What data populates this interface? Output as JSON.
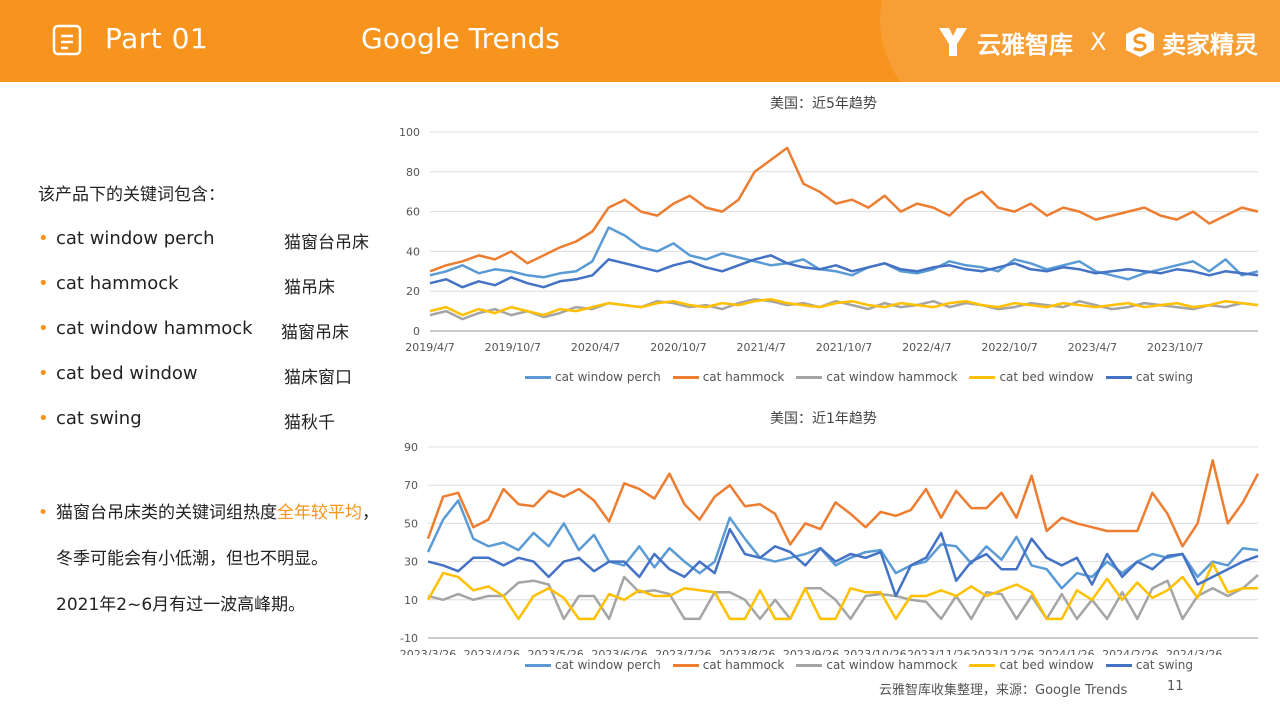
{
  "header": {
    "part": "Part 01",
    "title": "Google Trends",
    "brand_a": "云雅智库",
    "brand_sep": "X",
    "brand_b": "卖家精灵",
    "bg_color": "#f7941d"
  },
  "left": {
    "intro": "该产品下的关键词包含：",
    "bullet": "•",
    "keywords": [
      {
        "en": "cat window perch",
        "cn": "猫窗台吊床"
      },
      {
        "en": "cat hammock",
        "cn": "猫吊床"
      },
      {
        "en": "cat window hammock",
        "cn": "猫窗吊床"
      },
      {
        "en": "cat bed window",
        "cn": "猫床窗口"
      },
      {
        "en": "cat swing",
        "cn": "猫秋千"
      }
    ],
    "note_part1": "猫窗台吊床类的关键词组热度",
    "note_highlight": "全年较平均",
    "note_part2": "，冬季可能会有小低潮，但也不明显。",
    "note_part3": "2021年2~6月有过一波高峰期。"
  },
  "footer": {
    "source": "云雅智库收集整理，来源：Google Trends",
    "page": "11"
  },
  "chart_data": [
    {
      "type": "line",
      "title": "美国：近5年趋势",
      "ylim": [
        0,
        100
      ],
      "yticks": [
        0,
        20,
        40,
        60,
        80,
        100
      ],
      "xticks": [
        "2019/4/7",
        "2019/10/7",
        "2020/4/7",
        "2020/10/7",
        "2021/4/7",
        "2021/10/7",
        "2022/4/7",
        "2022/10/7",
        "2023/4/7",
        "2023/10/7"
      ],
      "legend_position": "bottom",
      "series": [
        {
          "name": "cat window perch",
          "color": "#5b9bd5",
          "values": [
            28,
            30,
            33,
            29,
            31,
            30,
            28,
            27,
            29,
            30,
            35,
            52,
            48,
            42,
            40,
            44,
            38,
            36,
            39,
            37,
            35,
            33,
            34,
            36,
            31,
            30,
            28,
            32,
            34,
            30,
            29,
            31,
            35,
            33,
            32,
            30,
            36,
            34,
            31,
            33,
            35,
            30,
            28,
            26,
            29,
            31,
            33,
            35,
            30,
            36,
            28,
            30
          ]
        },
        {
          "name": "cat hammock",
          "color": "#ed7d31",
          "values": [
            30,
            33,
            35,
            38,
            36,
            40,
            34,
            38,
            42,
            45,
            50,
            62,
            66,
            60,
            58,
            64,
            68,
            62,
            60,
            66,
            80,
            86,
            92,
            74,
            70,
            64,
            66,
            62,
            68,
            60,
            64,
            62,
            58,
            66,
            70,
            62,
            60,
            64,
            58,
            62,
            60,
            56,
            58,
            60,
            62,
            58,
            56,
            60,
            54,
            58,
            62,
            60
          ]
        },
        {
          "name": "cat window hammock",
          "color": "#a5a5a5",
          "values": [
            8,
            10,
            6,
            9,
            11,
            8,
            10,
            7,
            9,
            12,
            11,
            14,
            13,
            12,
            15,
            14,
            12,
            13,
            11,
            14,
            16,
            15,
            13,
            14,
            12,
            15,
            13,
            11,
            14,
            12,
            13,
            15,
            12,
            14,
            13,
            11,
            12,
            14,
            13,
            12,
            15,
            13,
            11,
            12,
            14,
            13,
            12,
            11,
            13,
            12,
            14,
            13
          ]
        },
        {
          "name": "cat bed window",
          "color": "#ffc000",
          "values": [
            10,
            12,
            8,
            11,
            9,
            12,
            10,
            8,
            11,
            10,
            12,
            14,
            13,
            12,
            14,
            15,
            13,
            12,
            14,
            13,
            15,
            16,
            14,
            13,
            12,
            14,
            15,
            13,
            12,
            14,
            13,
            12,
            14,
            15,
            13,
            12,
            14,
            13,
            12,
            14,
            13,
            12,
            13,
            14,
            12,
            13,
            14,
            12,
            13,
            15,
            14,
            13
          ]
        },
        {
          "name": "cat swing",
          "color": "#4472c4",
          "values": [
            24,
            26,
            22,
            25,
            23,
            27,
            24,
            22,
            25,
            26,
            28,
            36,
            34,
            32,
            30,
            33,
            35,
            32,
            30,
            33,
            36,
            38,
            34,
            32,
            31,
            33,
            30,
            32,
            34,
            31,
            30,
            32,
            33,
            31,
            30,
            32,
            34,
            31,
            30,
            32,
            31,
            29,
            30,
            31,
            30,
            29,
            31,
            30,
            28,
            30,
            29,
            28
          ]
        }
      ]
    },
    {
      "type": "line",
      "title": "美国：近1年趋势",
      "ylim": [
        -10,
        90
      ],
      "yticks": [
        -10,
        10,
        30,
        50,
        70,
        90
      ],
      "xticks": [
        "2023/3/26",
        "2023/4/26",
        "2023/5/26",
        "2023/6/26",
        "2023/7/26",
        "2023/8/26",
        "2023/9/26",
        "2023/10/26",
        "2023/11/26",
        "2023/12/26",
        "2024/1/26",
        "2024/2/26",
        "2024/3/26"
      ],
      "legend_position": "bottom",
      "series": [
        {
          "name": "cat window perch",
          "color": "#5b9bd5",
          "values": [
            35,
            52,
            62,
            42,
            38,
            40,
            36,
            45,
            38,
            50,
            36,
            44,
            30,
            28,
            38,
            27,
            37,
            30,
            24,
            30,
            53,
            42,
            32,
            30,
            32,
            34,
            37,
            28,
            32,
            35,
            36,
            24,
            28,
            30,
            39,
            38,
            29,
            38,
            31,
            43,
            28,
            26,
            16,
            24,
            22,
            30,
            24,
            30,
            34,
            32,
            34,
            22,
            30,
            28,
            37,
            36
          ]
        },
        {
          "name": "cat hammock",
          "color": "#ed7d31",
          "values": [
            42,
            64,
            66,
            48,
            52,
            68,
            60,
            59,
            67,
            64,
            68,
            62,
            51,
            71,
            68,
            63,
            76,
            60,
            52,
            64,
            70,
            59,
            60,
            55,
            39,
            50,
            47,
            61,
            55,
            48,
            56,
            54,
            57,
            68,
            53,
            67,
            58,
            58,
            66,
            53,
            75,
            46,
            53,
            50,
            48,
            46,
            46,
            46,
            66,
            55,
            38,
            50,
            83,
            50,
            61,
            76
          ]
        },
        {
          "name": "cat window hammock",
          "color": "#a5a5a5",
          "values": [
            12,
            10,
            13,
            10,
            12,
            12,
            19,
            20,
            18,
            0,
            12,
            12,
            0,
            22,
            14,
            15,
            13,
            0,
            0,
            14,
            14,
            10,
            0,
            10,
            0,
            16,
            16,
            10,
            0,
            12,
            13,
            12,
            10,
            9,
            0,
            12,
            0,
            14,
            13,
            0,
            12,
            0,
            13,
            0,
            10,
            0,
            14,
            0,
            16,
            20,
            0,
            12,
            16,
            12,
            16,
            23
          ]
        },
        {
          "name": "cat bed window",
          "color": "#ffc000",
          "values": [
            10,
            24,
            22,
            15,
            17,
            12,
            0,
            12,
            16,
            11,
            0,
            0,
            13,
            10,
            15,
            12,
            12,
            16,
            15,
            14,
            0,
            0,
            15,
            0,
            0,
            16,
            0,
            0,
            16,
            14,
            14,
            0,
            12,
            12,
            15,
            12,
            17,
            12,
            15,
            18,
            14,
            0,
            0,
            15,
            10,
            21,
            10,
            19,
            11,
            15,
            22,
            11,
            29,
            14,
            16,
            16
          ]
        },
        {
          "name": "cat swing",
          "color": "#4472c4",
          "values": [
            30,
            28,
            25,
            32,
            32,
            28,
            32,
            30,
            22,
            30,
            32,
            25,
            30,
            30,
            22,
            34,
            26,
            22,
            30,
            24,
            47,
            34,
            32,
            38,
            35,
            28,
            37,
            30,
            34,
            32,
            35,
            12,
            28,
            32,
            45,
            20,
            30,
            34,
            26,
            26,
            42,
            32,
            28,
            32,
            18,
            34,
            22,
            30,
            26,
            33,
            34,
            18,
            22,
            26,
            30,
            33
          ]
        }
      ]
    }
  ]
}
